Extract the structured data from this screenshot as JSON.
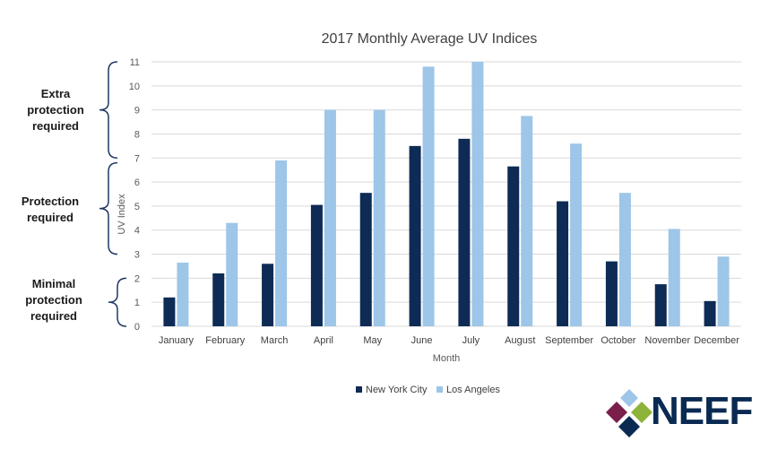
{
  "chart_data": {
    "type": "bar",
    "title": "2017 Monthly Average UV Indices",
    "xlabel": "Month",
    "ylabel": "UV Index",
    "ylim": [
      0,
      11
    ],
    "yticks": [
      "0",
      "1",
      "2",
      "3",
      "4",
      "5",
      "6",
      "7",
      "8",
      "9",
      "10",
      "11"
    ],
    "grid": true,
    "legend_position": "bottom",
    "categories": [
      "January",
      "February",
      "March",
      "April",
      "May",
      "June",
      "July",
      "August",
      "September",
      "October",
      "November",
      "December"
    ],
    "series": [
      {
        "name": "New York City",
        "color": "#0d2b55",
        "values": [
          1.2,
          2.2,
          2.6,
          5.05,
          5.55,
          7.5,
          7.8,
          6.65,
          5.2,
          2.7,
          1.75,
          1.05
        ]
      },
      {
        "name": "Los Angeles",
        "color": "#9dc6e8",
        "values": [
          2.65,
          4.3,
          6.9,
          9.0,
          9.0,
          10.8,
          11.0,
          8.75,
          7.6,
          5.55,
          4.05,
          2.9
        ]
      }
    ]
  },
  "annotations": [
    {
      "lines": [
        "Extra",
        "protection",
        "required"
      ]
    },
    {
      "lines": [
        "Protection",
        "required"
      ]
    },
    {
      "lines": [
        "Minimal",
        "protection",
        "required"
      ]
    }
  ],
  "logo": {
    "text": "NEEF"
  },
  "colors": {
    "grid": "#d9d9d9",
    "text": "#595959",
    "bracket": "#1f3864"
  }
}
